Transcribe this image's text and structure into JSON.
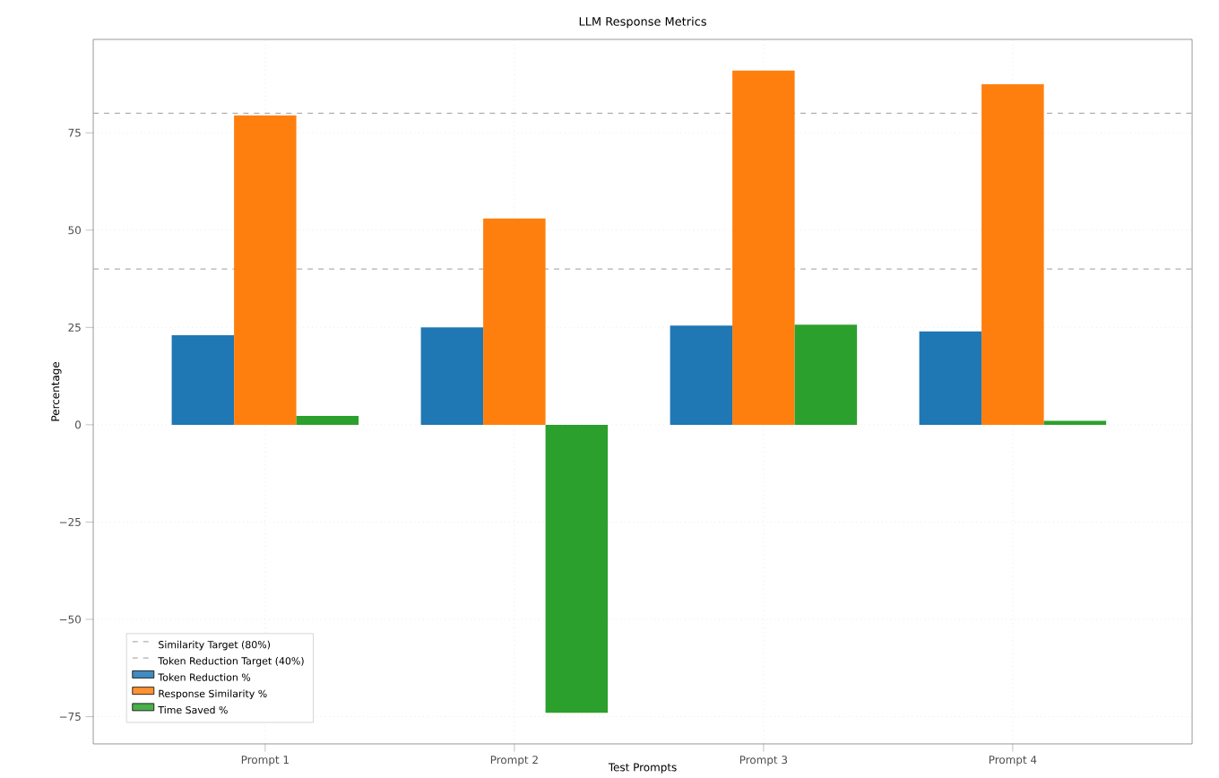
{
  "chart_data": {
    "type": "bar",
    "title": "LLM Response Metrics",
    "xlabel": "Test Prompts",
    "ylabel": "Percentage",
    "categories": [
      "Prompt 1",
      "Prompt 2",
      "Prompt 3",
      "Prompt 4"
    ],
    "series": [
      {
        "name": "Token Reduction %",
        "color": "#1f77b4",
        "values": [
          23,
          25,
          25.5,
          24
        ]
      },
      {
        "name": "Response Similarity %",
        "color": "#ff7f0e",
        "values": [
          79.5,
          53,
          91,
          87.5
        ]
      },
      {
        "name": "Time Saved %",
        "color": "#2ca02c",
        "values": [
          2.3,
          -74,
          25.7,
          1
        ]
      }
    ],
    "ylim": [
      -82,
      99
    ],
    "yticks": [
      {
        "value": -75,
        "label": "−75"
      },
      {
        "value": -50,
        "label": "−50"
      },
      {
        "value": -25,
        "label": "−25"
      },
      0,
      25,
      50,
      75
    ],
    "ref_lines": [
      {
        "axis": "y",
        "value": 80,
        "label": "Similarity Target (80%)",
        "color": "#b0b0b0",
        "line_style": "dashed"
      },
      {
        "axis": "y",
        "value": 40,
        "label": "Token Reduction Target (40%)",
        "color": "#b0b0b0",
        "line_style": "dashed"
      }
    ],
    "grid": true,
    "legend": "bottom left"
  }
}
